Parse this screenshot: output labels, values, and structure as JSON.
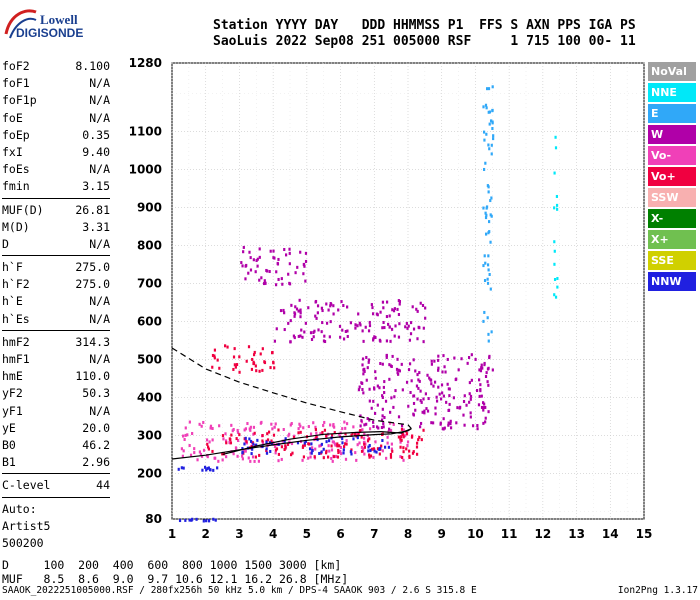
{
  "logo": {
    "line1": "Lowell",
    "line2": "DIGISONDE"
  },
  "header": {
    "line1": "Station YYYY DAY   DDD HHMMSS P1  FFS S AXN PPS IGA PS",
    "line2": "SaoLuis 2022 Sep08 251 005000 RSF     1 715 100 00- 11"
  },
  "params": {
    "group1": [
      {
        "label": "foF2",
        "value": "8.100"
      },
      {
        "label": "foF1",
        "value": "N/A"
      },
      {
        "label": "foF1p",
        "value": "N/A"
      },
      {
        "label": "foE",
        "value": "N/A"
      },
      {
        "label": "foEp",
        "value": "0.35"
      },
      {
        "label": "fxI",
        "value": "9.40"
      },
      {
        "label": "foEs",
        "value": "N/A"
      },
      {
        "label": "fmin",
        "value": "3.15"
      }
    ],
    "group2": [
      {
        "label": "MUF(D)",
        "value": "26.81"
      },
      {
        "label": "M(D)",
        "value": "3.31"
      },
      {
        "label": "D",
        "value": "N/A"
      }
    ],
    "group3": [
      {
        "label": "h`F",
        "value": "275.0"
      },
      {
        "label": "h`F2",
        "value": "275.0"
      },
      {
        "label": "h`E",
        "value": "N/A"
      },
      {
        "label": "h`Es",
        "value": "N/A"
      }
    ],
    "group4": [
      {
        "label": "hmF2",
        "value": "314.3"
      },
      {
        "label": "hmF1",
        "value": "N/A"
      },
      {
        "label": "hmE",
        "value": "110.0"
      },
      {
        "label": "yF2",
        "value": "50.3"
      },
      {
        "label": "yF1",
        "value": "N/A"
      },
      {
        "label": "yE",
        "value": "20.0"
      },
      {
        "label": "B0",
        "value": "46.2"
      },
      {
        "label": "B1",
        "value": "2.96"
      }
    ],
    "group5": [
      {
        "label": "C-level",
        "value": "44"
      }
    ]
  },
  "auto": {
    "line1": "Auto:",
    "line2": "Artist5",
    "line3": "500200"
  },
  "legend": [
    {
      "label": "NoVal",
      "color": "#a0a0a0"
    },
    {
      "label": "NNE",
      "color": "#00e8f8"
    },
    {
      "label": "E",
      "color": "#30a8f8"
    },
    {
      "label": "W",
      "color": "#b000a8"
    },
    {
      "label": "Vo-",
      "color": "#f040b8"
    },
    {
      "label": "Vo+",
      "color": "#f00040"
    },
    {
      "label": "SSW",
      "color": "#f8b0b0"
    },
    {
      "label": "X-",
      "color": "#008000"
    },
    {
      "label": "X+",
      "color": "#70c050"
    },
    {
      "label": "SSE",
      "color": "#d0d000"
    },
    {
      "label": "NNW",
      "color": "#2020e0"
    }
  ],
  "footer": {
    "line1": "D     100  200  400  600  800 1000 1500 3000 [km]",
    "line2": "MUF   8.5  8.6  9.0  9.7 10.6 12.1 16.2 26.8 [MHz]"
  },
  "bottom": {
    "left": "SAAOK_2022251005000.RSF / 280fx256h 50 kHz 5.0 km / DPS-4 SAAOK 903 / 2.6 S 315.8 E",
    "right": "Ion2Png 1.3.17"
  },
  "chart_data": {
    "type": "scatter",
    "xlim": [
      1,
      15
    ],
    "ylim": [
      80,
      1280
    ],
    "x_ticks": [
      1,
      2,
      3,
      4,
      5,
      6,
      7,
      8,
      9,
      10,
      11,
      12,
      13,
      14,
      15
    ],
    "y_ticks": [
      80,
      200,
      300,
      400,
      500,
      600,
      700,
      800,
      900,
      1000,
      1100,
      1280
    ],
    "grid": true,
    "xlabel": "",
    "ylabel": "",
    "traces": [
      {
        "style": "solid",
        "color": "#000000",
        "points": [
          [
            1,
            238
          ],
          [
            2,
            248
          ],
          [
            3,
            262
          ],
          [
            4,
            275
          ],
          [
            5,
            287
          ],
          [
            6,
            296
          ],
          [
            7,
            302
          ],
          [
            7.5,
            304
          ],
          [
            8,
            312
          ],
          [
            8.1,
            318
          ]
        ]
      },
      {
        "style": "solid",
        "color": "#000000",
        "points": [
          [
            2.5,
            250
          ],
          [
            3.5,
            272
          ],
          [
            4.5,
            290
          ],
          [
            5.5,
            303
          ],
          [
            6.5,
            308
          ],
          [
            7.2,
            310
          ],
          [
            7.8,
            306
          ],
          [
            8.1,
            318
          ]
        ]
      },
      {
        "style": "dashed",
        "color": "#000000",
        "points": [
          [
            1,
            530
          ],
          [
            2,
            475
          ],
          [
            3,
            440
          ],
          [
            4,
            412
          ],
          [
            5,
            385
          ],
          [
            6,
            362
          ],
          [
            7,
            340
          ],
          [
            8,
            328
          ],
          [
            8.1,
            318
          ]
        ]
      }
    ],
    "echo_regions": [
      {
        "x": [
          1.0,
          2.5
        ],
        "y": [
          210,
          220
        ],
        "color": "#2020e0"
      },
      {
        "x": [
          1.0,
          2.3
        ],
        "y": [
          78,
          84
        ],
        "color": "#2020e0"
      },
      {
        "x": [
          1.2,
          8.0
        ],
        "y": [
          235,
          340
        ],
        "color": "#f040b8"
      },
      {
        "x": [
          2.0,
          8.5
        ],
        "y": [
          245,
          320
        ],
        "color": "#f00040"
      },
      {
        "x": [
          3.0,
          7.5
        ],
        "y": [
          255,
          300
        ],
        "color": "#2020e0"
      },
      {
        "x": [
          6.5,
          10.5
        ],
        "y": [
          320,
          520
        ],
        "color": "#b000a8"
      },
      {
        "x": [
          2.0,
          4.0
        ],
        "y": [
          470,
          540
        ],
        "color": "#f00040"
      },
      {
        "x": [
          4.0,
          8.5
        ],
        "y": [
          550,
          660
        ],
        "color": "#b000a8"
      },
      {
        "x": [
          3.0,
          5.0
        ],
        "y": [
          700,
          800
        ],
        "color": "#b000a8"
      },
      {
        "x": [
          10.2,
          10.5
        ],
        "y": [
          540,
          1260
        ],
        "color": "#30a8f8"
      },
      {
        "x": [
          12.3,
          12.4
        ],
        "y": [
          580,
          1090
        ],
        "color": "#00e8f8"
      }
    ]
  }
}
